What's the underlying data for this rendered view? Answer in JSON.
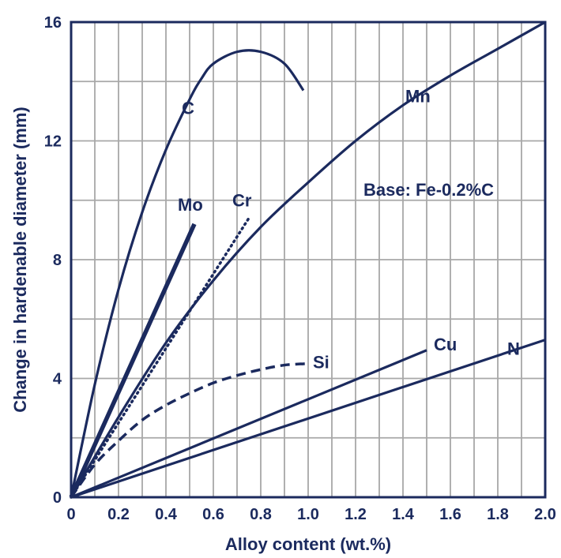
{
  "chart_data": {
    "type": "line",
    "title": "",
    "xlabel": "Alloy content (wt.%)",
    "ylabel": "Change in hardenable diameter (mm)",
    "xlim": [
      0,
      2.0
    ],
    "ylim": [
      0,
      16
    ],
    "x_ticks": [
      "0",
      "0.2",
      "0.4",
      "0.6",
      "0.8",
      "1.0",
      "1.2",
      "1.4",
      "1.6",
      "1.8",
      "2.0"
    ],
    "y_ticks": [
      "0",
      "4",
      "8",
      "12",
      "16"
    ],
    "grid": true,
    "annotation": "Base: Fe-0.2%C",
    "colors": {
      "line": "#1b2a5e",
      "grid": "#a8a8a8",
      "text": "#1b2a5e",
      "frame": "#1b2a5e"
    },
    "series": [
      {
        "name": "C",
        "style": "solid",
        "x": [
          0,
          0.1,
          0.2,
          0.3,
          0.4,
          0.5,
          0.55,
          0.6,
          0.7,
          0.8,
          0.9,
          0.98
        ],
        "y": [
          0,
          3.8,
          7.0,
          9.6,
          11.7,
          13.4,
          14.1,
          14.6,
          15.0,
          15.0,
          14.6,
          13.7
        ]
      },
      {
        "name": "Mn",
        "style": "solid",
        "x": [
          0,
          0.2,
          0.4,
          0.6,
          0.8,
          1.0,
          1.2,
          1.4,
          1.6,
          1.8,
          2.0
        ],
        "y": [
          0,
          2.7,
          5.2,
          7.3,
          9.1,
          10.6,
          12.0,
          13.2,
          14.2,
          15.1,
          16.0
        ]
      },
      {
        "name": "Mo",
        "style": "bold",
        "x": [
          0,
          0.52
        ],
        "y": [
          0,
          9.2
        ]
      },
      {
        "name": "Cr",
        "style": "dotted",
        "x": [
          0,
          0.75
        ],
        "y": [
          0,
          9.4
        ]
      },
      {
        "name": "Si",
        "style": "dashed",
        "x": [
          0,
          0.1,
          0.2,
          0.3,
          0.4,
          0.5,
          0.6,
          0.7,
          0.8,
          0.9,
          1.0
        ],
        "y": [
          0,
          1.1,
          1.9,
          2.6,
          3.1,
          3.5,
          3.85,
          4.1,
          4.3,
          4.45,
          4.5
        ]
      },
      {
        "name": "Cu",
        "style": "solid",
        "x": [
          0,
          1.5
        ],
        "y": [
          0,
          4.95
        ]
      },
      {
        "name": "N",
        "style": "solid",
        "x": [
          0,
          2.0
        ],
        "y": [
          0,
          5.3
        ]
      }
    ]
  }
}
